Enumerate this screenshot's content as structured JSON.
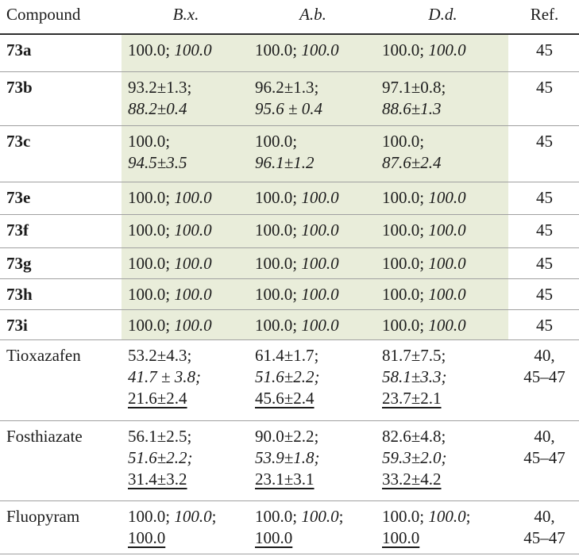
{
  "table": {
    "highlight_color": "#e9edda",
    "columns": {
      "compound": {
        "label": "Compound"
      },
      "bx": {
        "label": "B.x."
      },
      "ab": {
        "label": "A.b."
      },
      "dd": {
        "label": "D.d."
      },
      "ref": {
        "label": "Ref."
      }
    },
    "rows": [
      {
        "compound": "73a",
        "bold": true,
        "highlight": true,
        "bx": [
          [
            {
              "t": "100.0; ",
              "s": "n"
            },
            {
              "t": "100.0",
              "s": "i"
            }
          ]
        ],
        "ab": [
          [
            {
              "t": "100.0; ",
              "s": "n"
            },
            {
              "t": "100.0",
              "s": "i"
            }
          ]
        ],
        "dd": [
          [
            {
              "t": "100.0; ",
              "s": "n"
            },
            {
              "t": "100.0",
              "s": "i"
            }
          ]
        ],
        "ref": [
          "45"
        ]
      },
      {
        "compound": "73b",
        "bold": true,
        "highlight": true,
        "bx": [
          [
            {
              "t": "93.2±1.3;",
              "s": "n"
            }
          ],
          [
            {
              "t": "88.2±0.4",
              "s": "i"
            }
          ]
        ],
        "ab": [
          [
            {
              "t": "96.2±1.3;",
              "s": "n"
            }
          ],
          [
            {
              "t": "95.6 ± 0.4",
              "s": "i"
            }
          ]
        ],
        "dd": [
          [
            {
              "t": "97.1±0.8;",
              "s": "n"
            }
          ],
          [
            {
              "t": "88.6±1.3",
              "s": "i"
            }
          ]
        ],
        "ref": [
          "45"
        ]
      },
      {
        "compound": "73c",
        "bold": true,
        "highlight": true,
        "bx": [
          [
            {
              "t": "100.0;",
              "s": "n"
            }
          ],
          [
            {
              "t": "94.5±3.5",
              "s": "i"
            }
          ]
        ],
        "ab": [
          [
            {
              "t": "100.0;",
              "s": "n"
            }
          ],
          [
            {
              "t": "96.1±1.2",
              "s": "i"
            }
          ]
        ],
        "dd": [
          [
            {
              "t": "100.0;",
              "s": "n"
            }
          ],
          [
            {
              "t": "87.6±2.4",
              "s": "i"
            }
          ]
        ],
        "ref": [
          "45"
        ]
      },
      {
        "compound": "73e",
        "bold": true,
        "highlight": true,
        "bx": [
          [
            {
              "t": "100.0; ",
              "s": "n"
            },
            {
              "t": "100.0",
              "s": "i"
            }
          ]
        ],
        "ab": [
          [
            {
              "t": "100.0; ",
              "s": "n"
            },
            {
              "t": "100.0",
              "s": "i"
            }
          ]
        ],
        "dd": [
          [
            {
              "t": "100.0; ",
              "s": "n"
            },
            {
              "t": "100.0",
              "s": "i"
            }
          ]
        ],
        "ref": [
          "45"
        ]
      },
      {
        "compound": "73f",
        "bold": true,
        "highlight": true,
        "bx": [
          [
            {
              "t": "100.0; ",
              "s": "n"
            },
            {
              "t": "100.0",
              "s": "i"
            }
          ]
        ],
        "ab": [
          [
            {
              "t": "100.0; ",
              "s": "n"
            },
            {
              "t": "100.0",
              "s": "i"
            }
          ]
        ],
        "dd": [
          [
            {
              "t": "100.0; ",
              "s": "n"
            },
            {
              "t": "100.0",
              "s": "i"
            }
          ]
        ],
        "ref": [
          "45"
        ]
      },
      {
        "compound": "73g",
        "bold": true,
        "highlight": true,
        "bx": [
          [
            {
              "t": "100.0; ",
              "s": "n"
            },
            {
              "t": "100.0",
              "s": "i"
            }
          ]
        ],
        "ab": [
          [
            {
              "t": "100.0; ",
              "s": "n"
            },
            {
              "t": "100.0",
              "s": "i"
            }
          ]
        ],
        "dd": [
          [
            {
              "t": "100.0; ",
              "s": "n"
            },
            {
              "t": "100.0",
              "s": "i"
            }
          ]
        ],
        "ref": [
          "45"
        ]
      },
      {
        "compound": "73h",
        "bold": true,
        "highlight": true,
        "bx": [
          [
            {
              "t": "100.0; ",
              "s": "n"
            },
            {
              "t": "100.0",
              "s": "i"
            }
          ]
        ],
        "ab": [
          [
            {
              "t": "100.0; ",
              "s": "n"
            },
            {
              "t": "100.0",
              "s": "i"
            }
          ]
        ],
        "dd": [
          [
            {
              "t": "100.0; ",
              "s": "n"
            },
            {
              "t": "100.0",
              "s": "i"
            }
          ]
        ],
        "ref": [
          "45"
        ]
      },
      {
        "compound": "73i",
        "bold": true,
        "highlight": true,
        "bx": [
          [
            {
              "t": "100.0; ",
              "s": "n"
            },
            {
              "t": "100.0",
              "s": "i"
            }
          ]
        ],
        "ab": [
          [
            {
              "t": "100.0; ",
              "s": "n"
            },
            {
              "t": "100.0",
              "s": "i"
            }
          ]
        ],
        "dd": [
          [
            {
              "t": "100.0; ",
              "s": "n"
            },
            {
              "t": "100.0",
              "s": "i"
            }
          ]
        ],
        "ref": [
          "45"
        ]
      },
      {
        "compound": "Tioxazafen",
        "bold": false,
        "highlight": false,
        "bx": [
          [
            {
              "t": "53.2±4.3;",
              "s": "n"
            }
          ],
          [
            {
              "t": "41.7 ± 3.8;",
              "s": "i"
            }
          ],
          [
            {
              "t": "21.6±2.4",
              "s": "u"
            }
          ]
        ],
        "ab": [
          [
            {
              "t": "61.4±1.7;",
              "s": "n"
            }
          ],
          [
            {
              "t": "51.6±2.2;",
              "s": "i"
            }
          ],
          [
            {
              "t": "45.6±2.4",
              "s": "u"
            }
          ]
        ],
        "dd": [
          [
            {
              "t": "81.7±7.5;",
              "s": "n"
            }
          ],
          [
            {
              "t": "58.1±3.3;",
              "s": "i"
            }
          ],
          [
            {
              "t": "23.7±2.1",
              "s": "u"
            }
          ]
        ],
        "ref": [
          "40,",
          "45–47"
        ]
      },
      {
        "compound": "Fosthiazate",
        "bold": false,
        "highlight": false,
        "bx": [
          [
            {
              "t": "56.1±2.5;",
              "s": "n"
            }
          ],
          [
            {
              "t": "51.6±2.2;",
              "s": "i"
            }
          ],
          [
            {
              "t": "31.4±3.2",
              "s": "u"
            }
          ]
        ],
        "ab": [
          [
            {
              "t": "90.0±2.2;",
              "s": "n"
            }
          ],
          [
            {
              "t": "53.9±1.8;",
              "s": "i"
            }
          ],
          [
            {
              "t": "23.1±3.1",
              "s": "u"
            }
          ]
        ],
        "dd": [
          [
            {
              "t": "82.6±4.8;",
              "s": "n"
            }
          ],
          [
            {
              "t": "59.3±2.0;",
              "s": "i"
            }
          ],
          [
            {
              "t": "33.2±4.2",
              "s": "u"
            }
          ]
        ],
        "ref": [
          "40,",
          "45–47"
        ]
      },
      {
        "compound": "Fluopyram",
        "bold": false,
        "highlight": false,
        "bx": [
          [
            {
              "t": "100.0; ",
              "s": "n"
            },
            {
              "t": "100.0",
              "s": "i"
            },
            {
              "t": ";",
              "s": "n"
            }
          ],
          [
            {
              "t": "100.0",
              "s": "u"
            }
          ]
        ],
        "ab": [
          [
            {
              "t": "100.0; ",
              "s": "n"
            },
            {
              "t": "100.0",
              "s": "i"
            },
            {
              "t": ";",
              "s": "n"
            }
          ],
          [
            {
              "t": "100.0",
              "s": "u"
            }
          ]
        ],
        "dd": [
          [
            {
              "t": "100.0; ",
              "s": "n"
            },
            {
              "t": "100.0",
              "s": "i"
            },
            {
              "t": ";",
              "s": "n"
            }
          ],
          [
            {
              "t": "100.0",
              "s": "u"
            }
          ]
        ],
        "ref": [
          "40,",
          "45–47"
        ]
      }
    ]
  }
}
